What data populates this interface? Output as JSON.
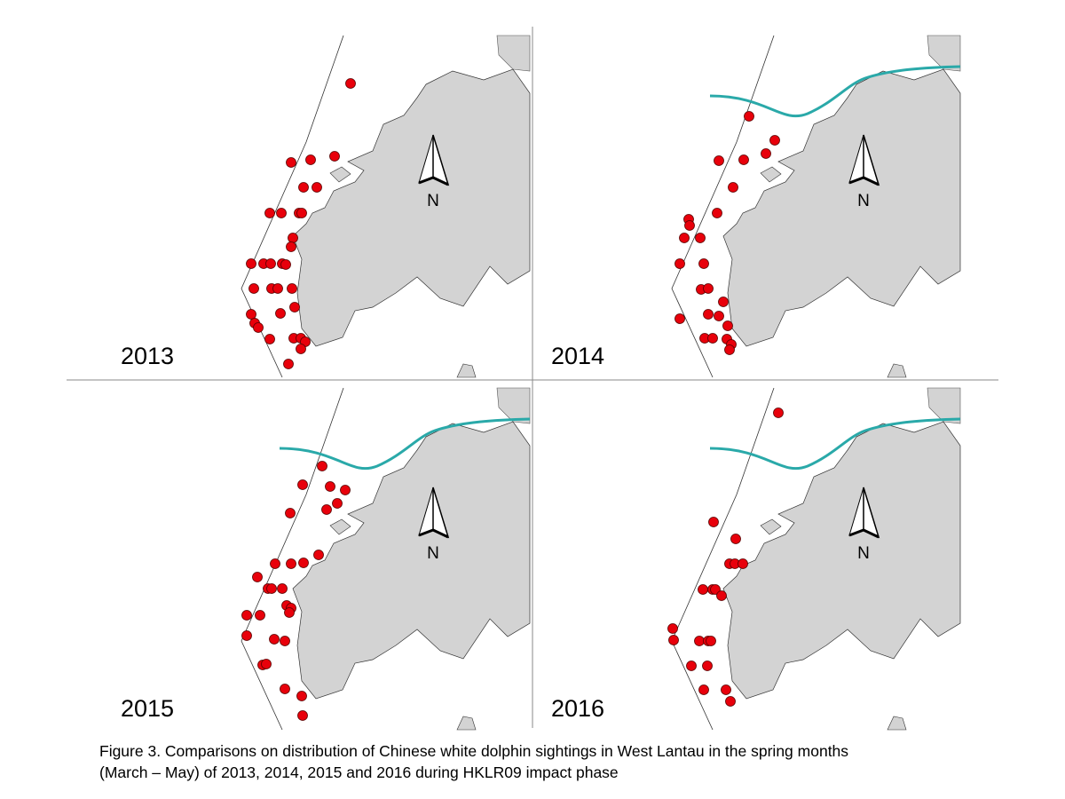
{
  "panels": [
    {
      "year": "2013",
      "north": "N"
    },
    {
      "year": "2014",
      "north": "N"
    },
    {
      "year": "2015",
      "north": "N"
    },
    {
      "year": "2016",
      "north": "N"
    }
  ],
  "caption": {
    "line1": "Figure 3.  Comparisons on distribution of Chinese white dolphin sightings in West Lantau in the spring months",
    "line2": "(March – May) of 2013, 2014, 2015 and 2016 during HKLR09 impact phase"
  }
}
